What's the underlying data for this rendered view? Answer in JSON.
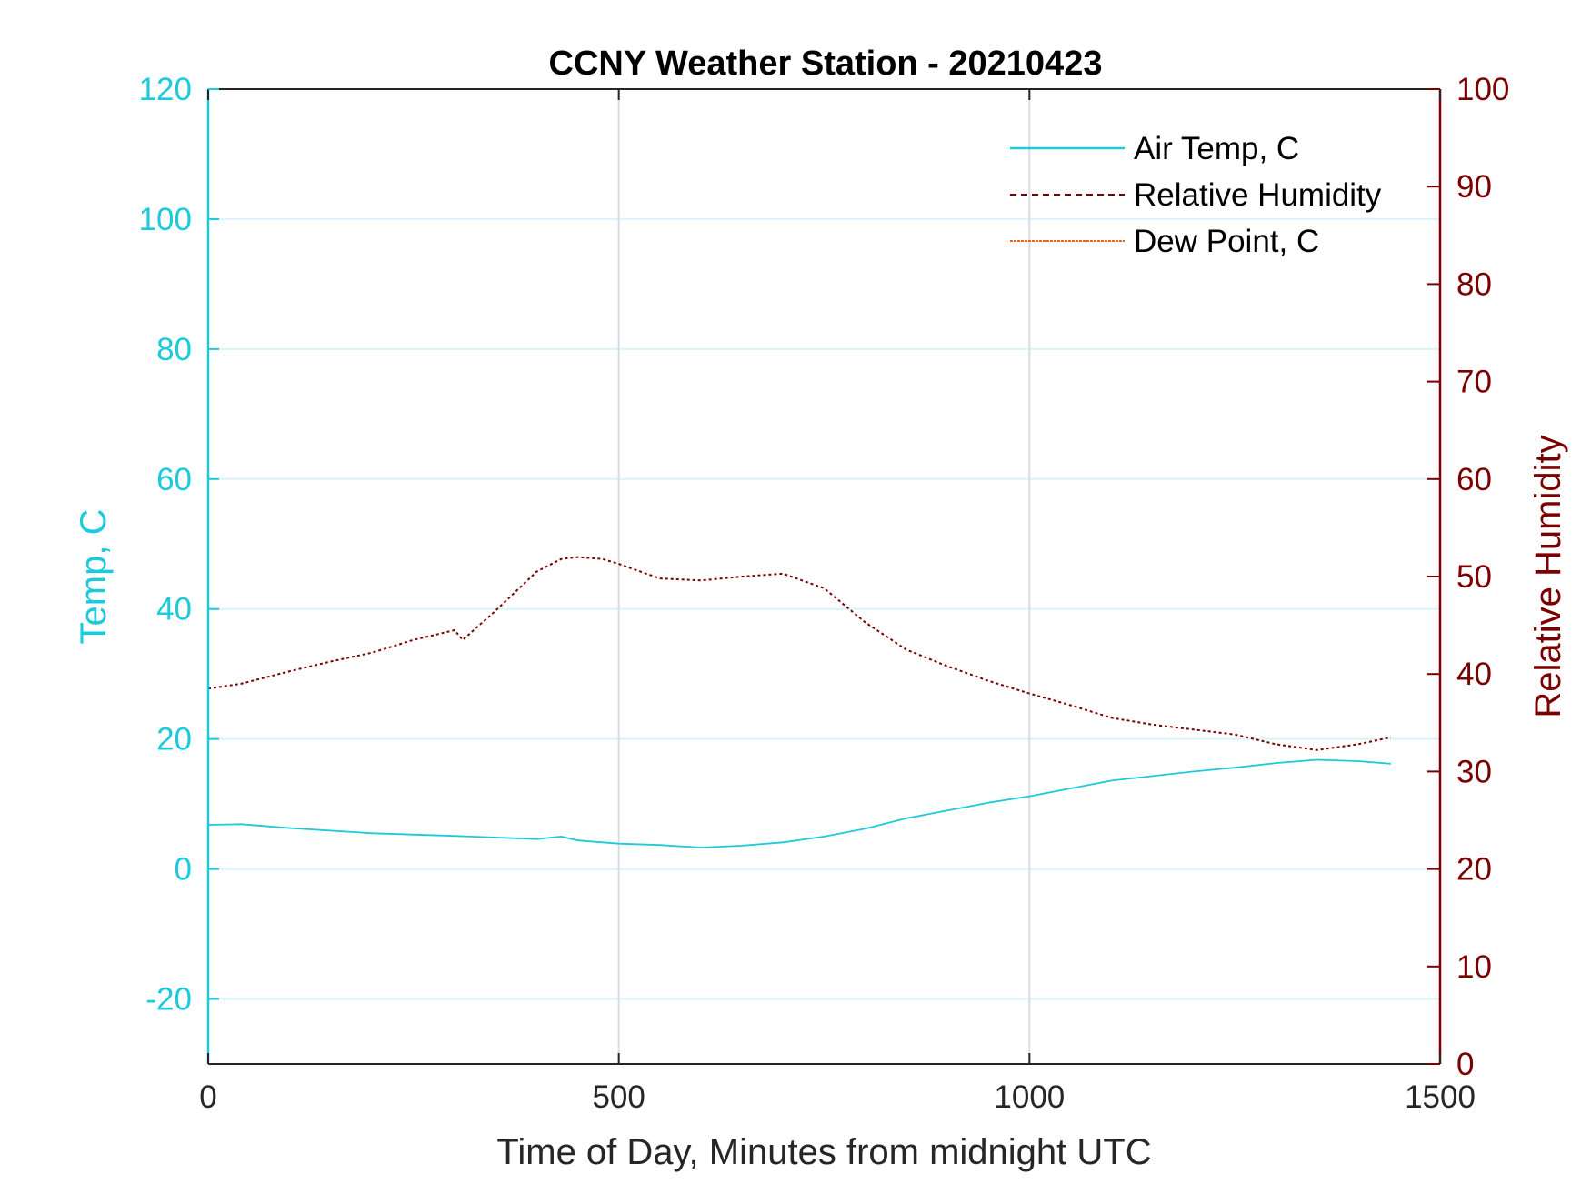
{
  "chart_data": {
    "type": "line",
    "title": "CCNY Weather Station - 20210423",
    "xlabel": "Time of Day, Minutes from midnight UTC",
    "ylabel_left": "Temp, C",
    "ylabel_right": "Relative Humidity",
    "xlim": [
      0,
      1500
    ],
    "ylim_left": [
      -30,
      120
    ],
    "ylim_right": [
      0,
      100
    ],
    "x_ticks": [
      0,
      500,
      1000,
      1500
    ],
    "y_ticks_left": [
      -20,
      0,
      20,
      40,
      60,
      80,
      100,
      120
    ],
    "y_ticks_right": [
      0,
      10,
      20,
      30,
      40,
      50,
      60,
      70,
      80,
      90,
      100
    ],
    "grid": true,
    "legend_position": "top-right",
    "colors": {
      "left_axis": "#1ccadb",
      "right_axis": "#7a0000",
      "dew_point": "#e8641b",
      "grid_x": "#d7dce2",
      "grid_y": "#d9f4f8"
    },
    "series": [
      {
        "name": "Air Temp, C",
        "axis": "left",
        "style": "solid",
        "x": [
          0,
          40,
          60,
          100,
          200,
          300,
          400,
          430,
          450,
          500,
          550,
          600,
          650,
          700,
          750,
          800,
          850,
          900,
          950,
          1000,
          1050,
          1100,
          1150,
          1200,
          1250,
          1300,
          1350,
          1400,
          1440
        ],
        "values": [
          6.8,
          6.9,
          6.7,
          6.3,
          5.5,
          5.1,
          4.6,
          5.0,
          4.4,
          3.9,
          3.7,
          3.3,
          3.6,
          4.1,
          5.0,
          6.2,
          7.8,
          9.0,
          10.2,
          11.2,
          12.4,
          13.6,
          14.3,
          15.0,
          15.6,
          16.3,
          16.8,
          16.6,
          16.2
        ]
      },
      {
        "name": "Relative Humidity",
        "axis": "right",
        "style": "dashed",
        "x": [
          0,
          40,
          100,
          150,
          200,
          250,
          300,
          310,
          350,
          400,
          430,
          450,
          480,
          500,
          550,
          600,
          650,
          700,
          750,
          800,
          850,
          900,
          950,
          1000,
          1050,
          1100,
          1150,
          1200,
          1250,
          1300,
          1350,
          1400,
          1440
        ],
        "values": [
          38.5,
          39.0,
          40.3,
          41.3,
          42.2,
          43.5,
          44.5,
          43.5,
          46.5,
          50.5,
          51.8,
          52.0,
          51.8,
          51.3,
          49.8,
          49.6,
          50.0,
          50.3,
          48.8,
          45.3,
          42.5,
          40.8,
          39.3,
          38.0,
          36.8,
          35.5,
          34.8,
          34.3,
          33.8,
          32.8,
          32.2,
          32.8,
          33.5
        ]
      },
      {
        "name": "Dew Point, C",
        "axis": "left",
        "style": "dashed",
        "x": [],
        "values": []
      }
    ]
  }
}
